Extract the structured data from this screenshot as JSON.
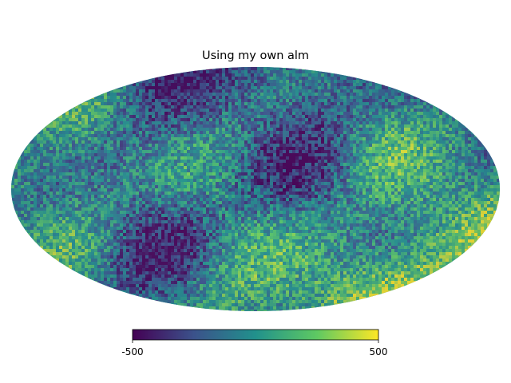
{
  "chart_data": {
    "type": "heatmap",
    "projection": "mollweide",
    "title": "Using my own alm",
    "colormap": "viridis",
    "colormap_stops": [
      "#440154",
      "#3b528b",
      "#21918c",
      "#5ec962",
      "#fde725"
    ],
    "map_dominant_color": "#21918c",
    "colorbar": {
      "vmin": -500,
      "vmax": 500,
      "tick_labels": [
        "-500",
        "500"
      ],
      "orientation": "horizontal"
    },
    "grid": false,
    "axes_visible": false
  }
}
